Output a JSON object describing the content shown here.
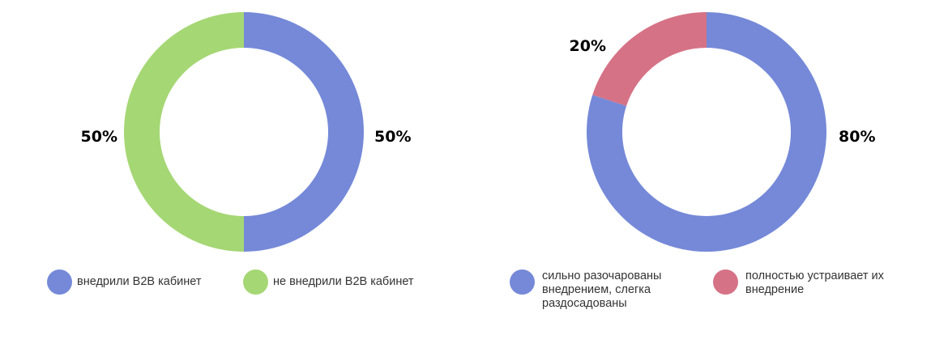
{
  "chart_data": [
    {
      "type": "pie",
      "style": "donut",
      "slices": [
        {
          "label": "внедрили B2B кабинет",
          "value": 50,
          "display": "50%",
          "color": "#7589d8"
        },
        {
          "label": "не внедрили B2B кабинет",
          "value": 50,
          "display": "50%",
          "color": "#a5d774"
        }
      ]
    },
    {
      "type": "pie",
      "style": "donut",
      "slices": [
        {
          "label": "сильно разочарованы внедрением, слегка раздосадованы",
          "value": 80,
          "display": "80%",
          "color": "#7589d8"
        },
        {
          "label": "полностью устраивает их внедрение",
          "value": 20,
          "display": "20%",
          "color": "#d67286"
        }
      ]
    }
  ]
}
